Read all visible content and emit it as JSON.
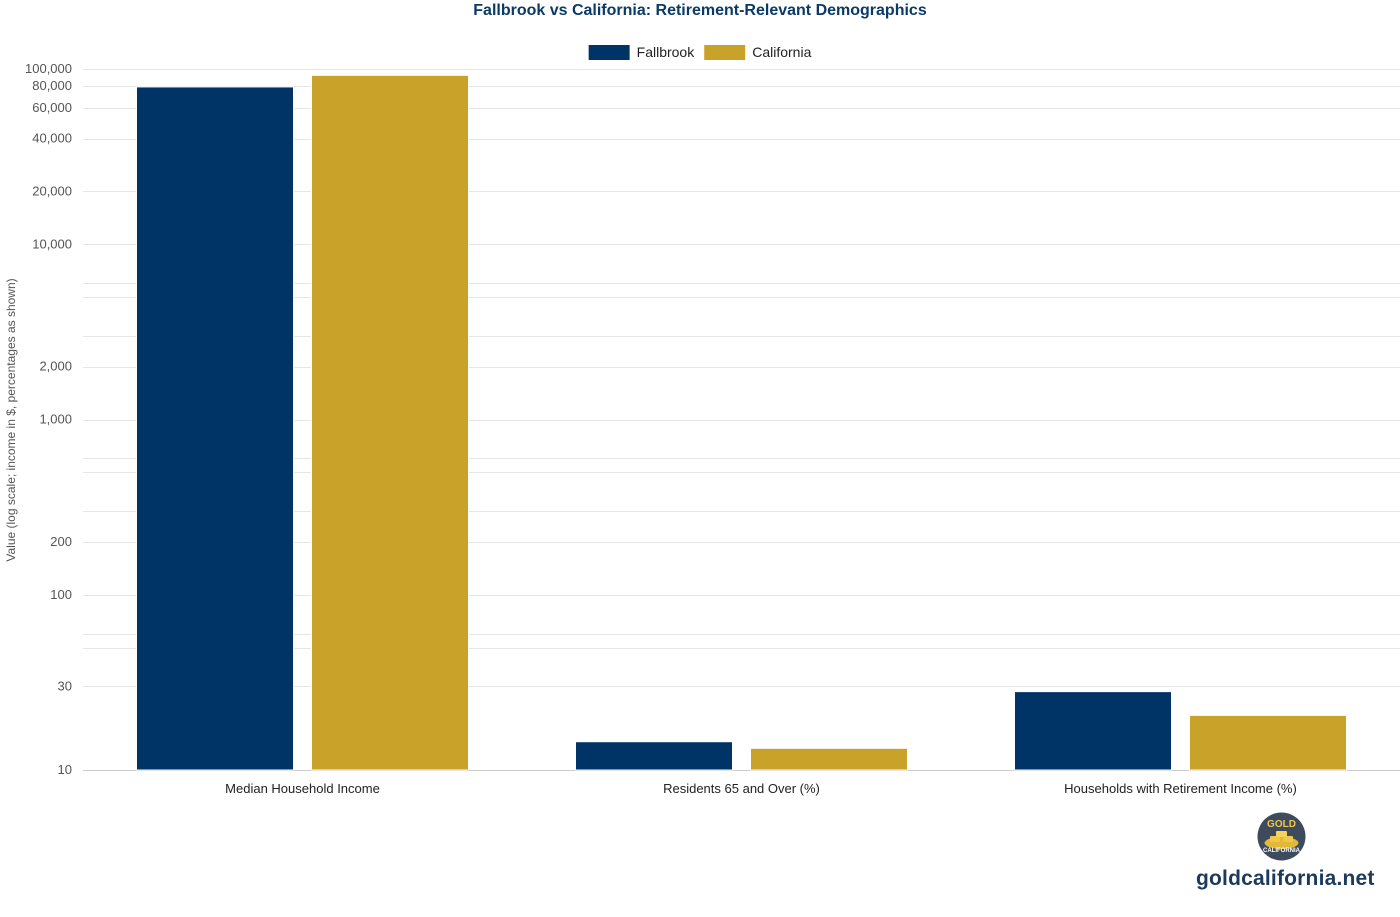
{
  "chart_data": {
    "type": "bar",
    "title": "Fallbrook vs California: Retirement-Relevant Demographics",
    "ylabel": "Value (log scale; income in $, percentages as shown)",
    "xlabel": "",
    "yscale": "log",
    "ylim": [
      10,
      100000
    ],
    "yticks": [
      {
        "value": 10,
        "label": "10"
      },
      {
        "value": 30,
        "label": "30"
      },
      {
        "value": 100,
        "label": "100"
      },
      {
        "value": 200,
        "label": "200"
      },
      {
        "value": 1000,
        "label": "1,000"
      },
      {
        "value": 2000,
        "label": "2,000"
      },
      {
        "value": 10000,
        "label": "10,000"
      },
      {
        "value": 20000,
        "label": "20,000"
      },
      {
        "value": 40000,
        "label": "40,000"
      },
      {
        "value": 60000,
        "label": "60,000"
      },
      {
        "value": 80000,
        "label": "80,000"
      },
      {
        "value": 100000,
        "label": "100,000"
      }
    ],
    "grid": true,
    "legend_position": "top-center",
    "categories": [
      "Median Household Income",
      "Residents 65 and Over (%)",
      "Households with Retirement Income (%)"
    ],
    "series": [
      {
        "name": "Fallbrook",
        "color": "#003366",
        "values": [
          79000,
          14.5,
          28
        ]
      },
      {
        "name": "California",
        "color": "#c9a22a",
        "values": [
          92000,
          13.3,
          20.5
        ]
      }
    ]
  },
  "branding": {
    "logo_top": "GOLD",
    "logo_bottom": "CALIFORNIA",
    "site": "goldcalifornia.net"
  }
}
